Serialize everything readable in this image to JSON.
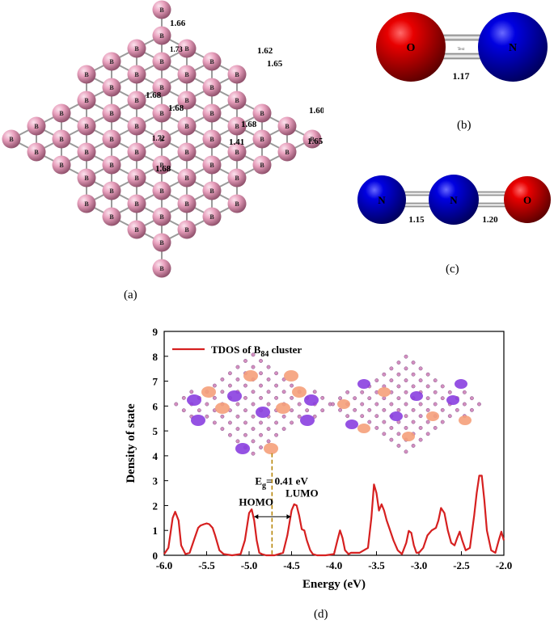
{
  "figure": {
    "captions": {
      "a": "(a)",
      "b": "(b)",
      "c": "(c)",
      "d": "(d)"
    },
    "colors": {
      "boron": "#e8a0bd",
      "oxygen": "#e00000",
      "nitrogen": "#0000dd",
      "tdos": "#d62020",
      "homo_orbital": "#8a3fe0",
      "lumo_orbital": "#f5a07a",
      "gap_line": "#b8860b"
    }
  },
  "panel_a": {
    "atom_label": "B",
    "bond_lengths": [
      "1.66",
      "1.73",
      "1.62",
      "1.65",
      "1.68",
      "1.68",
      "1.60",
      "1.68",
      "1.72",
      "1.41",
      "1.65",
      "1.68"
    ]
  },
  "panel_b": {
    "atoms": [
      "O",
      "N"
    ],
    "bond_center_label": "Text",
    "bond_length": "1.17"
  },
  "panel_c": {
    "atoms": [
      "N",
      "N",
      "O"
    ],
    "bond_lengths": [
      "1.15",
      "1.20"
    ]
  },
  "chart_data": {
    "type": "line",
    "legend": "TDOS of B84 cluster",
    "legend_prefix": "TDOS of B",
    "legend_sub": "84",
    "legend_suffix": " cluster",
    "legend_placement": "top-left",
    "xlabel": "Energy (eV)",
    "ylabel": "Density of state",
    "xlim": [
      -6.0,
      -2.0
    ],
    "ylim": [
      0,
      9
    ],
    "xticks": [
      "-6.0",
      "-5.5",
      "-5.0",
      "-4.5",
      "-4.0",
      "-3.5",
      "-3.0",
      "-2.5",
      "-2.0"
    ],
    "yticks": [
      "0",
      "1",
      "2",
      "3",
      "4",
      "5",
      "6",
      "7",
      "8",
      "9"
    ],
    "series": [
      {
        "name": "TDOS of B84 cluster",
        "x": [
          -6.0,
          -5.95,
          -5.9,
          -5.87,
          -5.83,
          -5.8,
          -5.75,
          -5.7,
          -5.65,
          -5.6,
          -5.57,
          -5.53,
          -5.5,
          -5.47,
          -5.43,
          -5.4,
          -5.35,
          -5.3,
          -5.2,
          -5.1,
          -5.05,
          -5.0,
          -4.97,
          -4.94,
          -4.91,
          -4.88,
          -4.85,
          -4.8,
          -4.7,
          -4.6,
          -4.55,
          -4.5,
          -4.47,
          -4.44,
          -4.41,
          -4.38,
          -4.35,
          -4.32,
          -4.28,
          -4.25,
          -4.2,
          -4.1,
          -4.0,
          -3.96,
          -3.93,
          -3.9,
          -3.87,
          -3.83,
          -3.8,
          -3.7,
          -3.6,
          -3.56,
          -3.53,
          -3.5,
          -3.47,
          -3.44,
          -3.41,
          -3.38,
          -3.35,
          -3.3,
          -3.25,
          -3.2,
          -3.15,
          -3.12,
          -3.09,
          -3.06,
          -3.03,
          -3.0,
          -2.95,
          -2.9,
          -2.85,
          -2.8,
          -2.77,
          -2.74,
          -2.7,
          -2.66,
          -2.62,
          -2.58,
          -2.55,
          -2.52,
          -2.49,
          -2.45,
          -2.4,
          -2.35,
          -2.32,
          -2.29,
          -2.26,
          -2.23,
          -2.2,
          -2.15,
          -2.1,
          -2.06,
          -2.03,
          -2.0
        ],
        "y": [
          0.05,
          0.3,
          1.5,
          1.75,
          1.4,
          0.4,
          0.05,
          0.1,
          0.6,
          1.1,
          1.2,
          1.25,
          1.28,
          1.25,
          1.1,
          0.8,
          0.2,
          0.05,
          0.0,
          0.05,
          0.6,
          1.7,
          1.85,
          1.4,
          0.6,
          0.1,
          0.05,
          0.0,
          0.0,
          0.1,
          0.8,
          1.8,
          2.05,
          2.0,
          1.6,
          1.05,
          1.0,
          0.6,
          0.2,
          0.05,
          0.0,
          0.0,
          0.05,
          0.6,
          1.0,
          0.7,
          0.2,
          0.05,
          0.1,
          0.1,
          0.3,
          1.5,
          2.85,
          2.5,
          1.8,
          2.05,
          1.8,
          1.4,
          1.1,
          0.6,
          0.2,
          0.05,
          0.5,
          0.98,
          0.9,
          0.4,
          0.1,
          0.1,
          0.3,
          0.8,
          1.0,
          1.1,
          1.4,
          1.9,
          1.7,
          1.0,
          0.5,
          0.4,
          0.7,
          0.95,
          0.6,
          0.2,
          0.3,
          1.6,
          2.5,
          3.2,
          3.2,
          2.2,
          1.0,
          0.2,
          0.1,
          0.6,
          0.95,
          0.6
        ]
      }
    ],
    "gap_marker_x": -4.73,
    "annotations": {
      "homo": "HOMO",
      "lumo": "LUMO",
      "gap_symbol": "E",
      "gap_sub": "g",
      "gap_value": "= 0.41 eV"
    }
  }
}
